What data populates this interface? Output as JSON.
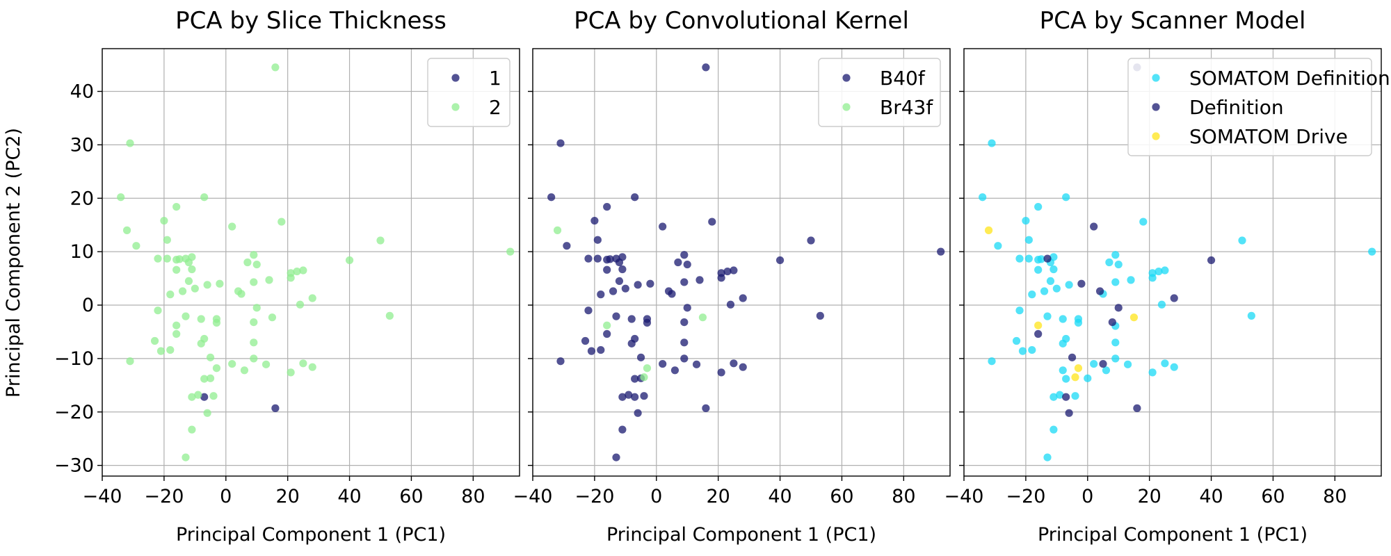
{
  "figure": {
    "ylabel": "Principal Component 2 (PC2)",
    "xlabel": "Principal Component 1 (PC1)"
  },
  "chart_data": [
    {
      "type": "scatter",
      "title": "PCA by Slice Thickness",
      "xlabel": "Principal Component 1 (PC1)",
      "ylabel": "Principal Component 2 (PC2)",
      "xlim": [
        -40,
        95
      ],
      "ylim": [
        -32,
        48
      ],
      "xticks": [
        -40,
        -20,
        0,
        20,
        40,
        60,
        80
      ],
      "yticks": [
        -30,
        -20,
        -10,
        0,
        10,
        20,
        30,
        40
      ],
      "grid": true,
      "legend": "top-right",
      "series": [
        {
          "name": "1",
          "color": "#191970",
          "points": [
            [
              -7,
              -17.2
            ],
            [
              16,
              -19.3
            ]
          ]
        },
        {
          "name": "2",
          "color": "#90ee90",
          "points": [
            [
              16,
              44.5
            ],
            [
              -31,
              30.3
            ],
            [
              -34,
              20.2
            ],
            [
              -7,
              20.2
            ],
            [
              -32,
              14
            ],
            [
              -20,
              15.8
            ],
            [
              -16,
              18.4
            ],
            [
              18,
              15.6
            ],
            [
              2,
              14.7
            ],
            [
              -29,
              11.1
            ],
            [
              50,
              12.1
            ],
            [
              92,
              10
            ],
            [
              -22,
              8.7
            ],
            [
              -19,
              12.2
            ],
            [
              -19,
              8.7
            ],
            [
              -16,
              8.5
            ],
            [
              -15,
              8.6
            ],
            [
              -13,
              8.7
            ],
            [
              -11,
              9
            ],
            [
              -12,
              8
            ],
            [
              7,
              8
            ],
            [
              9,
              9.4
            ],
            [
              10,
              7.6
            ],
            [
              40,
              8.4
            ],
            [
              21,
              6
            ],
            [
              23,
              6.3
            ],
            [
              25,
              6.5
            ],
            [
              21,
              5.1
            ],
            [
              -11,
              6.7
            ],
            [
              -16,
              6.6
            ],
            [
              -12,
              4.5
            ],
            [
              -10,
              3.1
            ],
            [
              -6,
              3.8
            ],
            [
              -2,
              4
            ],
            [
              4,
              2.6
            ],
            [
              5,
              2.1
            ],
            [
              9,
              4.3
            ],
            [
              14,
              4.7
            ],
            [
              28,
              1.3
            ],
            [
              -18,
              2
            ],
            [
              -14,
              2.6
            ],
            [
              10,
              -0.5
            ],
            [
              -22,
              -1
            ],
            [
              -13,
              -2.1
            ],
            [
              -8,
              -2.6
            ],
            [
              -3,
              -2.6
            ],
            [
              -3,
              -3.3
            ],
            [
              -16,
              -3.8
            ],
            [
              9,
              -3.2
            ],
            [
              15,
              -2.3
            ],
            [
              24,
              0.1
            ],
            [
              53,
              -2
            ],
            [
              -16,
              -5.4
            ],
            [
              -7,
              -6.3
            ],
            [
              -8,
              -7.2
            ],
            [
              9,
              -7
            ],
            [
              -23,
              -6.7
            ],
            [
              -21,
              -8.6
            ],
            [
              -18,
              -8.4
            ],
            [
              -31,
              -10.5
            ],
            [
              -5,
              -9.8
            ],
            [
              -3,
              -11.8
            ],
            [
              2,
              -11
            ],
            [
              6,
              -12.2
            ],
            [
              9,
              -10
            ],
            [
              13,
              -11.1
            ],
            [
              21,
              -12.6
            ],
            [
              25,
              -10.9
            ],
            [
              28,
              -11.6
            ],
            [
              -5,
              -13.7
            ],
            [
              -7,
              -13.8
            ],
            [
              -9,
              -16.8
            ],
            [
              -11,
              -17.2
            ],
            [
              -11,
              -23.3
            ],
            [
              -13,
              -28.5
            ],
            [
              -6,
              -20.2
            ],
            [
              -4,
              -17
            ]
          ]
        }
      ]
    },
    {
      "type": "scatter",
      "title": "PCA by Convolutional Kernel",
      "xlabel": "Principal Component 1 (PC1)",
      "xlim": [
        -40,
        95
      ],
      "ylim": [
        -32,
        48
      ],
      "xticks": [
        -40,
        -20,
        0,
        20,
        40,
        60,
        80
      ],
      "grid": true,
      "legend": "top-right",
      "series": [
        {
          "name": "B40f",
          "color": "#191970",
          "points": [
            [
              16,
              44.5
            ],
            [
              -31,
              30.3
            ],
            [
              -34,
              20.2
            ],
            [
              -7,
              20.2
            ],
            [
              -20,
              15.8
            ],
            [
              -16,
              18.4
            ],
            [
              18,
              15.6
            ],
            [
              2,
              14.7
            ],
            [
              -29,
              11.1
            ],
            [
              50,
              12.1
            ],
            [
              92,
              10
            ],
            [
              -22,
              8.7
            ],
            [
              -19,
              12.2
            ],
            [
              -19,
              8.7
            ],
            [
              -16,
              8.5
            ],
            [
              -15,
              8.6
            ],
            [
              -13,
              8.7
            ],
            [
              -11,
              9
            ],
            [
              -12,
              8
            ],
            [
              7,
              8
            ],
            [
              9,
              9.4
            ],
            [
              10,
              7.6
            ],
            [
              40,
              8.4
            ],
            [
              21,
              6
            ],
            [
              23,
              6.3
            ],
            [
              25,
              6.5
            ],
            [
              21,
              5.1
            ],
            [
              -11,
              6.7
            ],
            [
              -16,
              6.6
            ],
            [
              -12,
              4.5
            ],
            [
              -10,
              3.1
            ],
            [
              -6,
              3.8
            ],
            [
              -2,
              4
            ],
            [
              4,
              2.6
            ],
            [
              5,
              2.1
            ],
            [
              9,
              4.3
            ],
            [
              14,
              4.7
            ],
            [
              28,
              1.3
            ],
            [
              -18,
              2
            ],
            [
              -14,
              2.6
            ],
            [
              10,
              -0.5
            ],
            [
              -22,
              -1
            ],
            [
              -13,
              -2.1
            ],
            [
              -8,
              -2.6
            ],
            [
              -3,
              -2.6
            ],
            [
              -3,
              -3.3
            ],
            [
              9,
              -3.2
            ],
            [
              24,
              0.1
            ],
            [
              53,
              -2
            ],
            [
              -16,
              -5.4
            ],
            [
              -7,
              -6.3
            ],
            [
              -8,
              -7.2
            ],
            [
              9,
              -7
            ],
            [
              -23,
              -6.7
            ],
            [
              -21,
              -8.6
            ],
            [
              -18,
              -8.4
            ],
            [
              -31,
              -10.5
            ],
            [
              -5,
              -9.8
            ],
            [
              2,
              -11
            ],
            [
              6,
              -12.2
            ],
            [
              9,
              -10
            ],
            [
              13,
              -11.1
            ],
            [
              21,
              -12.6
            ],
            [
              25,
              -10.9
            ],
            [
              28,
              -11.6
            ],
            [
              -5,
              -13.7
            ],
            [
              -7,
              -13.8
            ],
            [
              -9,
              -16.8
            ],
            [
              -11,
              -17.2
            ],
            [
              -11,
              -23.3
            ],
            [
              -13,
              -28.5
            ],
            [
              -6,
              -20.2
            ],
            [
              -4,
              -17
            ],
            [
              -7,
              -17.2
            ],
            [
              16,
              -19.3
            ]
          ]
        },
        {
          "name": "Br43f",
          "color": "#90ee90",
          "points": [
            [
              -32,
              14
            ],
            [
              -16,
              -3.8
            ],
            [
              15,
              -2.3
            ],
            [
              -3,
              -11.8
            ],
            [
              -4,
              -13.5
            ]
          ]
        }
      ]
    },
    {
      "type": "scatter",
      "title": "PCA by Scanner Model",
      "xlabel": "Principal Component 1 (PC1)",
      "xlim": [
        -40,
        95
      ],
      "ylim": [
        -32,
        48
      ],
      "xticks": [
        -40,
        -20,
        0,
        20,
        40,
        60,
        80
      ],
      "grid": true,
      "legend": "top-right",
      "series": [
        {
          "name": "SOMATOM Definition",
          "color": "#1ad9f5",
          "points": [
            [
              -31,
              30.3
            ],
            [
              -34,
              20.2
            ],
            [
              -7,
              20.2
            ],
            [
              -16,
              18.4
            ],
            [
              18,
              15.6
            ],
            [
              -20,
              15.8
            ],
            [
              -29,
              11.1
            ],
            [
              50,
              12.1
            ],
            [
              92,
              10
            ],
            [
              -22,
              8.7
            ],
            [
              -19,
              12.2
            ],
            [
              -19,
              8.7
            ],
            [
              -16,
              8.5
            ],
            [
              -15,
              8.6
            ],
            [
              -11,
              9
            ],
            [
              -12,
              8
            ],
            [
              7,
              8
            ],
            [
              9,
              9.4
            ],
            [
              10,
              7.6
            ],
            [
              21,
              6
            ],
            [
              23,
              6.3
            ],
            [
              25,
              6.5
            ],
            [
              21,
              5.1
            ],
            [
              -11,
              6.7
            ],
            [
              -16,
              6.6
            ],
            [
              -12,
              4.5
            ],
            [
              -10,
              3.1
            ],
            [
              -6,
              3.8
            ],
            [
              5,
              2.1
            ],
            [
              9,
              4.3
            ],
            [
              14,
              4.7
            ],
            [
              -18,
              2
            ],
            [
              -14,
              2.6
            ],
            [
              -22,
              -1
            ],
            [
              -13,
              -2.1
            ],
            [
              -8,
              -2.6
            ],
            [
              -3,
              -2.6
            ],
            [
              -3,
              -3.3
            ],
            [
              9,
              -3.9
            ],
            [
              24,
              0.1
            ],
            [
              53,
              -2
            ],
            [
              -7,
              -6.3
            ],
            [
              -8,
              -7.2
            ],
            [
              9,
              -7
            ],
            [
              -23,
              -6.7
            ],
            [
              -21,
              -8.6
            ],
            [
              -18,
              -8.4
            ],
            [
              -31,
              -10.5
            ],
            [
              2,
              -11
            ],
            [
              6,
              -12.2
            ],
            [
              9,
              -10
            ],
            [
              13,
              -11.1
            ],
            [
              21,
              -12.6
            ],
            [
              25,
              -10.9
            ],
            [
              28,
              -11.6
            ],
            [
              -7,
              -13.8
            ],
            [
              -9,
              -16.8
            ],
            [
              -11,
              -17.2
            ],
            [
              -11,
              -23.3
            ],
            [
              -13,
              -28.5
            ],
            [
              -4,
              -17
            ],
            [
              -8,
              -12.2
            ],
            [
              0,
              -13.7
            ]
          ]
        },
        {
          "name": "Definition",
          "color": "#191970",
          "points": [
            [
              16,
              44.5
            ],
            [
              2,
              14.7
            ],
            [
              -13,
              8.7
            ],
            [
              40,
              8.4
            ],
            [
              -2,
              4
            ],
            [
              4,
              2.6
            ],
            [
              28,
              1.3
            ],
            [
              10,
              -0.5
            ],
            [
              8,
              -3.2
            ],
            [
              -16,
              -5.4
            ],
            [
              -5,
              -9.8
            ],
            [
              -6,
              -20.2
            ],
            [
              -7,
              -17.2
            ],
            [
              16,
              -19.3
            ],
            [
              5,
              -11
            ]
          ]
        },
        {
          "name": "SOMATOM Drive",
          "color": "#ffe419",
          "points": [
            [
              -32,
              14
            ],
            [
              -16,
              -3.8
            ],
            [
              15,
              -2.3
            ],
            [
              -3,
              -11.8
            ],
            [
              -4,
              -13.5
            ]
          ]
        }
      ]
    }
  ]
}
